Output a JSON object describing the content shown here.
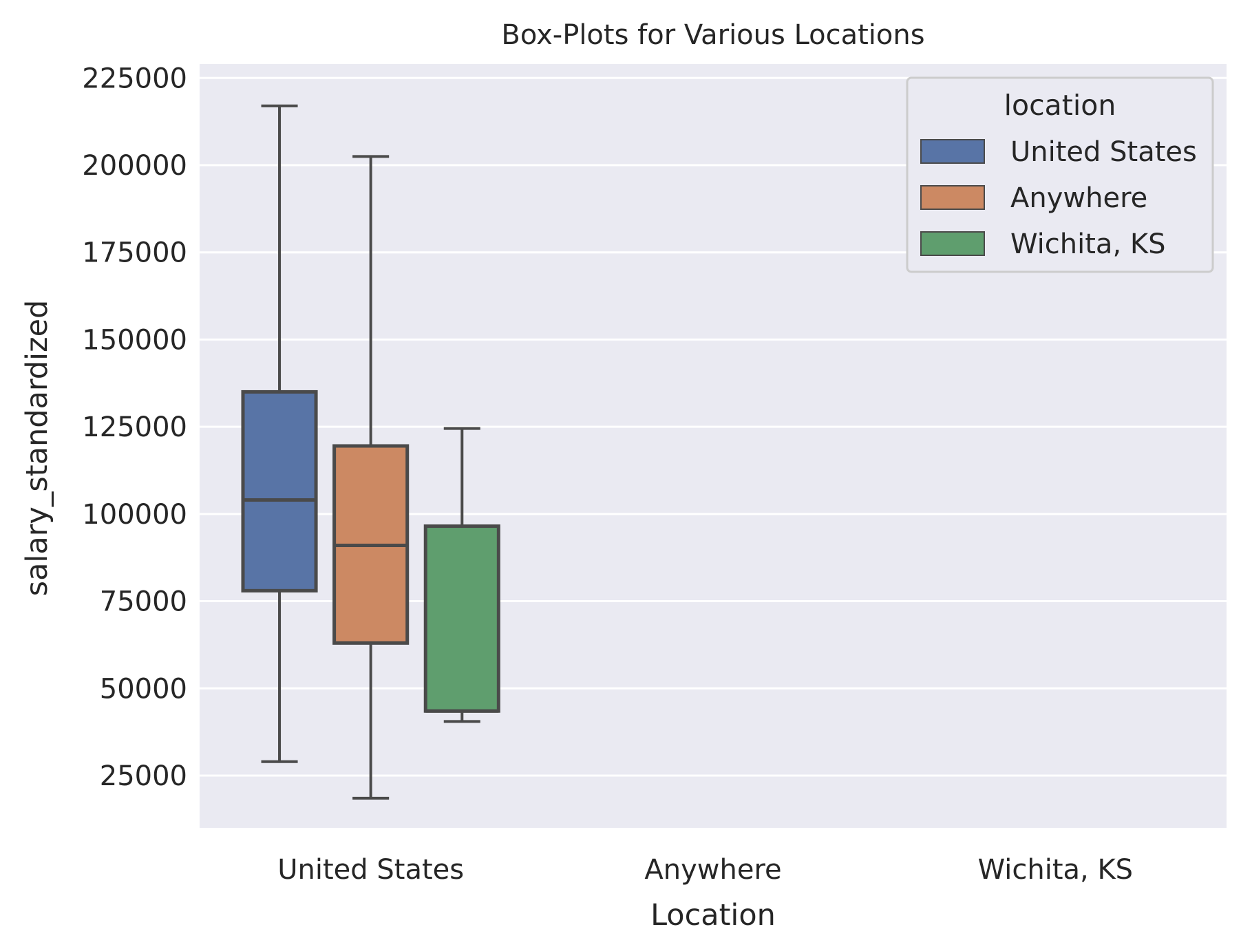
{
  "chart_data": {
    "type": "box",
    "title": "Box-Plots for Various Locations",
    "xlabel": "Location",
    "ylabel": "salary_standardized",
    "ylim": [
      10000,
      229000
    ],
    "yticks": [
      25000,
      50000,
      75000,
      100000,
      125000,
      150000,
      175000,
      200000,
      225000
    ],
    "grid": true,
    "categories": [
      "United States",
      "Anywhere",
      "Wichita, KS"
    ],
    "series": [
      {
        "name": "United States",
        "color": "#5874a6",
        "values": [
          {
            "whisker_low": 29000,
            "q1": 78000,
            "median": 104000,
            "q3": 135000,
            "whisker_high": 217000
          }
        ]
      },
      {
        "name": "Anywhere",
        "color": "#cc8963",
        "values": [
          {
            "whisker_low": 18500,
            "q1": 63000,
            "median": 91000,
            "q3": 119500,
            "whisker_high": 202500
          }
        ]
      },
      {
        "name": "Wichita, KS",
        "color": "#5f9e6e",
        "values": [
          {
            "whisker_low": 40500,
            "q1": 43500,
            "median": 43500,
            "q3": 96500,
            "whisker_high": 124500
          }
        ]
      }
    ],
    "legend": {
      "title": "location",
      "position": "top-right"
    },
    "colors": {
      "plot_background": "#eaeaf2",
      "grid": "#ffffff",
      "box_edge": "#4a4a4a"
    }
  }
}
